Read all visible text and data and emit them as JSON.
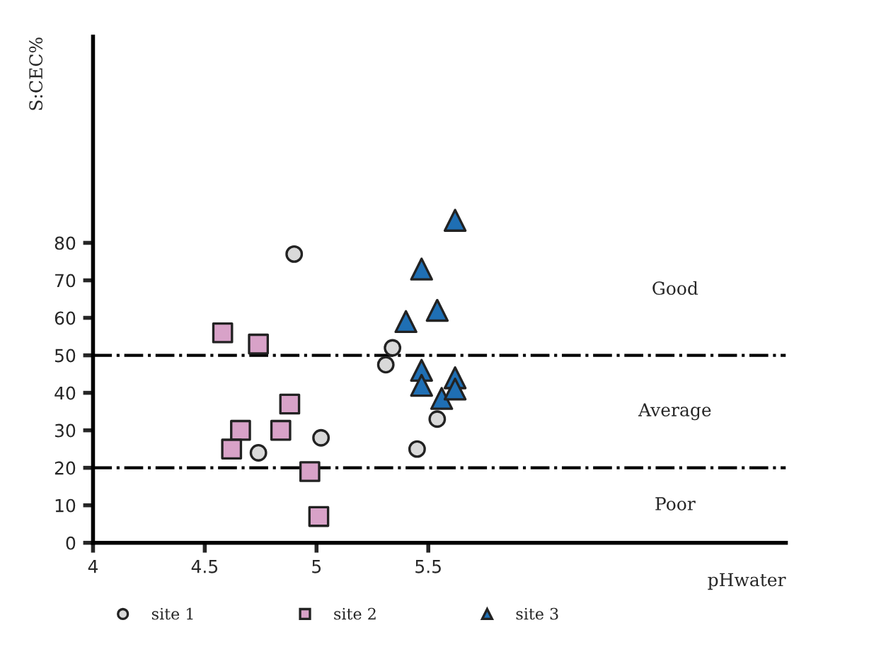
{
  "chart_data": {
    "type": "scatter",
    "xlabel": "pHwater",
    "ylabel": "S:CEC%",
    "series": [
      {
        "name": "site 1",
        "color": "#d9d9d9",
        "marker": "circle",
        "x": [
          4.9,
          4.74,
          5.02,
          5.31,
          5.34,
          5.54,
          5.45
        ],
        "values": [
          77,
          24,
          28,
          47.5,
          52,
          33,
          25
        ]
      },
      {
        "name": "site 2",
        "color": "#d8a2c8",
        "marker": "square",
        "x": [
          4.58,
          4.74,
          4.88,
          4.66,
          4.62,
          4.84,
          4.97,
          5.01
        ],
        "values": [
          56,
          53,
          37,
          30,
          25,
          30,
          19,
          7
        ]
      },
      {
        "name": "site 3",
        "color": "#1f6fb4",
        "marker": "triangle",
        "x": [
          5.62,
          5.47,
          5.54,
          5.4,
          5.47,
          5.47,
          5.56,
          5.62,
          5.62
        ],
        "values": [
          86,
          73,
          62,
          59,
          46,
          42,
          38.5,
          44,
          41
        ]
      }
    ],
    "xlim": [
      4,
      7.1
    ],
    "xticks": [
      4,
      4.5,
      5,
      5.5
    ],
    "ylim": [
      0,
      135
    ],
    "yticks": [
      0,
      10,
      20,
      30,
      40,
      50,
      60,
      70,
      80
    ],
    "ref_lines": [
      {
        "axis": "y",
        "value": 50,
        "color": "#000000",
        "line_style": "dashdot"
      },
      {
        "axis": "y",
        "value": 20,
        "color": "#000000",
        "line_style": "dashdot"
      }
    ],
    "annotations": [
      "Good",
      "Average",
      "Poor"
    ],
    "grid": false,
    "legend": "bottom"
  }
}
